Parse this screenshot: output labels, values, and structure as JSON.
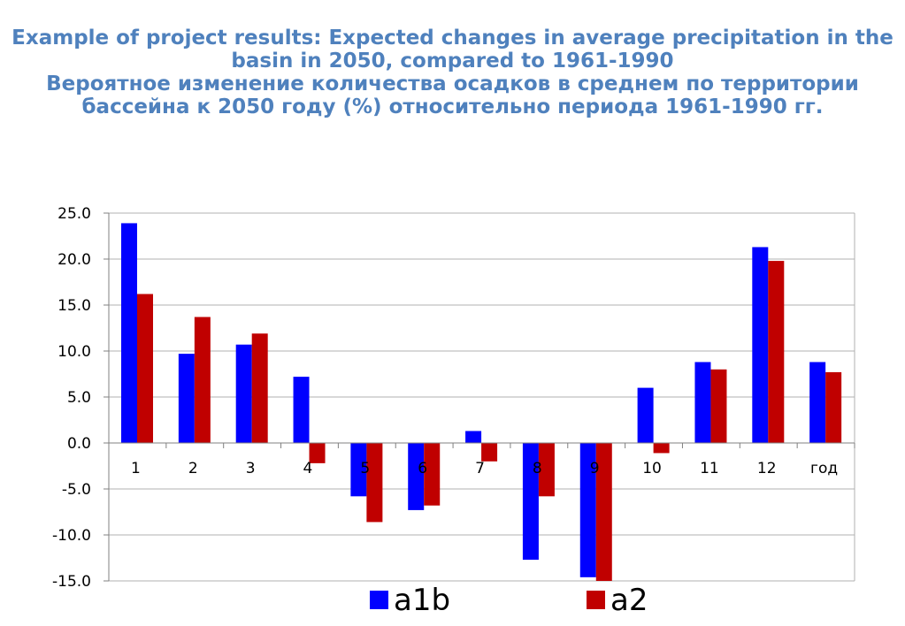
{
  "title": {
    "line1": "Example of project results: Expected changes in average precipitation in the",
    "line2": "basin in 2050, compared to 1961-1990",
    "line3": "Вероятное изменение количества осадков в среднем по территории",
    "line4": "бассейна к 2050 году (%)  относительно периода 1961-1990 гг."
  },
  "chart_data": {
    "type": "bar",
    "categories": [
      "1",
      "2",
      "3",
      "4",
      "5",
      "6",
      "7",
      "8",
      "9",
      "10",
      "11",
      "12",
      "год"
    ],
    "series": [
      {
        "name": "a1b",
        "color": "#0000ff",
        "values": [
          23.9,
          9.7,
          10.7,
          7.2,
          -5.8,
          -7.3,
          1.3,
          -12.7,
          -14.6,
          6.0,
          8.8,
          21.3,
          8.8
        ]
      },
      {
        "name": "a2",
        "color": "#c00000",
        "values": [
          16.2,
          13.7,
          11.9,
          -2.2,
          -8.6,
          -6.8,
          -2.0,
          -5.8,
          -15.0,
          -1.1,
          8.0,
          19.8,
          7.7
        ]
      }
    ],
    "ylim": [
      -15,
      25
    ],
    "yticks": [
      "25.0",
      "20.0",
      "15.0",
      "10.0",
      "5.0",
      "0.0",
      "-5.0",
      "-10.0",
      "-15.0"
    ],
    "ytick_values": [
      25,
      20,
      15,
      10,
      5,
      0,
      -5,
      -10,
      -15
    ],
    "grid": true,
    "legend": "bottom-center"
  }
}
